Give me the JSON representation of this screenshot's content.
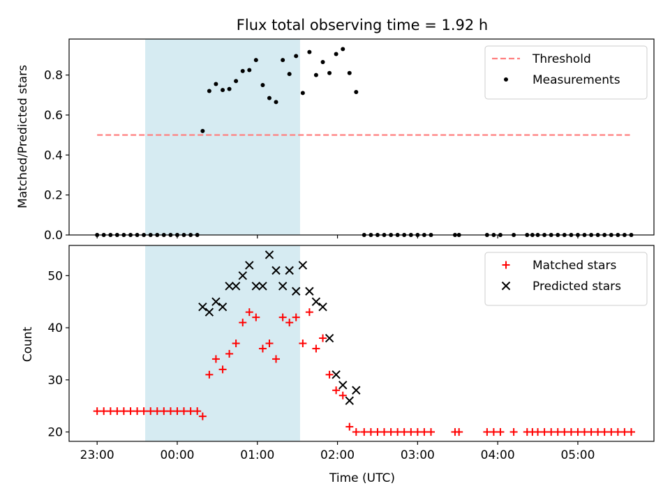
{
  "title": "Flux total observing time = 1.92 h",
  "shaded_region": {
    "start_hours": 0.6,
    "end_hours": 2.533,
    "color": "#add8e6"
  },
  "chart_data": [
    {
      "type": "scatter",
      "ylabel": "Matched/Predicted stars",
      "xlim": [
        -0.35,
        6.95
      ],
      "ylim": [
        0,
        0.98
      ],
      "yticks": [
        0.0,
        0.2,
        0.4,
        0.6,
        0.8
      ],
      "ytick_labels": [
        "0.0",
        "0.2",
        "0.4",
        "0.6",
        "0.8"
      ],
      "legend": {
        "placement": "top-right"
      },
      "threshold": {
        "name": "Threshold",
        "y": 0.5,
        "x_range": [
          0,
          6.65
        ],
        "color": "#ff7f7f"
      },
      "series": [
        {
          "name": "Measurements",
          "color": "#000000",
          "marker": "dot",
          "points": [
            [
              0.0,
              0
            ],
            [
              0.083,
              0
            ],
            [
              0.167,
              0
            ],
            [
              0.25,
              0
            ],
            [
              0.333,
              0
            ],
            [
              0.417,
              0
            ],
            [
              0.5,
              0
            ],
            [
              0.583,
              0
            ],
            [
              0.667,
              0
            ],
            [
              0.75,
              0
            ],
            [
              0.833,
              0
            ],
            [
              0.917,
              0
            ],
            [
              1.0,
              0
            ],
            [
              1.083,
              0
            ],
            [
              1.167,
              0
            ],
            [
              1.25,
              0
            ],
            [
              1.317,
              0.52
            ],
            [
              1.4,
              0.72
            ],
            [
              1.483,
              0.755
            ],
            [
              1.567,
              0.725
            ],
            [
              1.65,
              0.73
            ],
            [
              1.733,
              0.77
            ],
            [
              1.817,
              0.82
            ],
            [
              1.9,
              0.825
            ],
            [
              1.983,
              0.875
            ],
            [
              2.067,
              0.75
            ],
            [
              2.15,
              0.685
            ],
            [
              2.233,
              0.665
            ],
            [
              2.317,
              0.875
            ],
            [
              2.4,
              0.805
            ],
            [
              2.483,
              0.895
            ],
            [
              2.567,
              0.71
            ],
            [
              2.65,
              0.915
            ],
            [
              2.733,
              0.8
            ],
            [
              2.817,
              0.865
            ],
            [
              2.9,
              0.81
            ],
            [
              2.983,
              0.905
            ],
            [
              3.067,
              0.93
            ],
            [
              3.15,
              0.81
            ],
            [
              3.233,
              0.715
            ],
            [
              3.333,
              0
            ],
            [
              3.417,
              0
            ],
            [
              3.5,
              0
            ],
            [
              3.583,
              0
            ],
            [
              3.667,
              0
            ],
            [
              3.75,
              0
            ],
            [
              3.833,
              0
            ],
            [
              3.917,
              0
            ],
            [
              4.0,
              0
            ],
            [
              4.083,
              0
            ],
            [
              4.167,
              0
            ],
            [
              4.467,
              0
            ],
            [
              4.517,
              0
            ],
            [
              4.867,
              0
            ],
            [
              4.95,
              0
            ],
            [
              5.033,
              0
            ],
            [
              5.2,
              0
            ],
            [
              5.367,
              0
            ],
            [
              5.433,
              0
            ],
            [
              5.5,
              0
            ],
            [
              5.583,
              0
            ],
            [
              5.667,
              0
            ],
            [
              5.75,
              0
            ],
            [
              5.833,
              0
            ],
            [
              5.917,
              0
            ],
            [
              6.0,
              0
            ],
            [
              6.083,
              0
            ],
            [
              6.167,
              0
            ],
            [
              6.25,
              0
            ],
            [
              6.333,
              0
            ],
            [
              6.417,
              0
            ],
            [
              6.5,
              0
            ],
            [
              6.583,
              0
            ],
            [
              6.667,
              0
            ]
          ]
        }
      ]
    },
    {
      "type": "scatter",
      "xlabel": "Time (UTC)",
      "ylabel": "Count",
      "xlim": [
        -0.35,
        6.95
      ],
      "ylim": [
        18.2,
        55.8
      ],
      "yticks": [
        20,
        30,
        40,
        50
      ],
      "ytick_labels": [
        "20",
        "30",
        "40",
        "50"
      ],
      "xticks": [
        0,
        1,
        2,
        3,
        4,
        5,
        6
      ],
      "xtick_labels": [
        "23:00",
        "00:00",
        "01:00",
        "02:00",
        "03:00",
        "04:00",
        "05:00"
      ],
      "legend": {
        "placement": "top-right"
      },
      "series": [
        {
          "name": "Matched stars",
          "color": "#ff0000",
          "marker": "plus",
          "points": [
            [
              0.0,
              24
            ],
            [
              0.083,
              24
            ],
            [
              0.167,
              24
            ],
            [
              0.25,
              24
            ],
            [
              0.333,
              24
            ],
            [
              0.417,
              24
            ],
            [
              0.5,
              24
            ],
            [
              0.583,
              24
            ],
            [
              0.667,
              24
            ],
            [
              0.75,
              24
            ],
            [
              0.833,
              24
            ],
            [
              0.917,
              24
            ],
            [
              1.0,
              24
            ],
            [
              1.083,
              24
            ],
            [
              1.167,
              24
            ],
            [
              1.25,
              24
            ],
            [
              1.317,
              23
            ],
            [
              1.4,
              31
            ],
            [
              1.483,
              34
            ],
            [
              1.567,
              32
            ],
            [
              1.65,
              35
            ],
            [
              1.733,
              37
            ],
            [
              1.817,
              41
            ],
            [
              1.9,
              43
            ],
            [
              1.983,
              42
            ],
            [
              2.067,
              36
            ],
            [
              2.15,
              37
            ],
            [
              2.233,
              34
            ],
            [
              2.317,
              42
            ],
            [
              2.4,
              41
            ],
            [
              2.483,
              42
            ],
            [
              2.567,
              37
            ],
            [
              2.65,
              43
            ],
            [
              2.733,
              36
            ],
            [
              2.817,
              38
            ],
            [
              2.9,
              31
            ],
            [
              2.983,
              28
            ],
            [
              3.067,
              27
            ],
            [
              3.15,
              21
            ],
            [
              3.233,
              20
            ],
            [
              3.333,
              20
            ],
            [
              3.417,
              20
            ],
            [
              3.5,
              20
            ],
            [
              3.583,
              20
            ],
            [
              3.667,
              20
            ],
            [
              3.75,
              20
            ],
            [
              3.833,
              20
            ],
            [
              3.917,
              20
            ],
            [
              4.0,
              20
            ],
            [
              4.083,
              20
            ],
            [
              4.167,
              20
            ],
            [
              4.467,
              20
            ],
            [
              4.517,
              20
            ],
            [
              4.867,
              20
            ],
            [
              4.95,
              20
            ],
            [
              5.033,
              20
            ],
            [
              5.2,
              20
            ],
            [
              5.367,
              20
            ],
            [
              5.433,
              20
            ],
            [
              5.5,
              20
            ],
            [
              5.583,
              20
            ],
            [
              5.667,
              20
            ],
            [
              5.75,
              20
            ],
            [
              5.833,
              20
            ],
            [
              5.917,
              20
            ],
            [
              6.0,
              20
            ],
            [
              6.083,
              20
            ],
            [
              6.167,
              20
            ],
            [
              6.25,
              20
            ],
            [
              6.333,
              20
            ],
            [
              6.417,
              20
            ],
            [
              6.5,
              20
            ],
            [
              6.583,
              20
            ],
            [
              6.667,
              20
            ]
          ]
        },
        {
          "name": "Predicted stars",
          "color": "#000000",
          "marker": "x",
          "points": [
            [
              1.317,
              44
            ],
            [
              1.4,
              43
            ],
            [
              1.483,
              45
            ],
            [
              1.567,
              44
            ],
            [
              1.65,
              48
            ],
            [
              1.733,
              48
            ],
            [
              1.817,
              50
            ],
            [
              1.9,
              52
            ],
            [
              1.983,
              48
            ],
            [
              2.067,
              48
            ],
            [
              2.15,
              54
            ],
            [
              2.233,
              51
            ],
            [
              2.317,
              48
            ],
            [
              2.4,
              51
            ],
            [
              2.483,
              47
            ],
            [
              2.567,
              52
            ],
            [
              2.65,
              47
            ],
            [
              2.733,
              45
            ],
            [
              2.817,
              44
            ],
            [
              2.9,
              38
            ],
            [
              2.983,
              31
            ],
            [
              3.067,
              29
            ],
            [
              3.15,
              26
            ],
            [
              3.233,
              28
            ]
          ]
        }
      ]
    }
  ]
}
